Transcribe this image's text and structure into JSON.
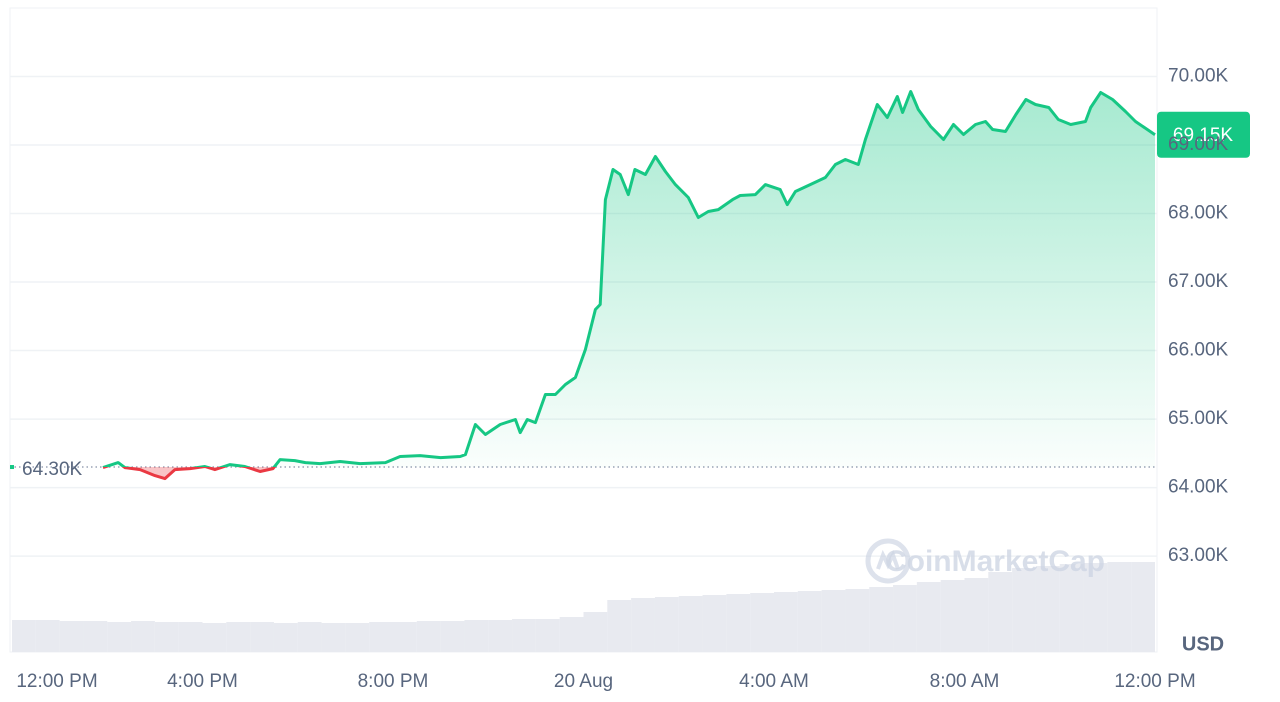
{
  "chart_data": {
    "type": "line",
    "x": [
      1.91,
      2.23,
      2.37,
      2.69,
      3.0,
      3.21,
      3.42,
      3.74,
      4.05,
      4.26,
      4.58,
      4.89,
      5.21,
      5.48,
      5.63,
      5.94,
      6.16,
      6.47,
      6.89,
      7.31,
      7.84,
      8.15,
      8.57,
      9.0,
      9.41,
      9.52,
      9.73,
      9.94,
      10.25,
      10.57,
      10.67,
      10.82,
      10.99,
      11.2,
      11.41,
      11.62,
      11.83,
      12.04,
      12.25,
      12.35,
      12.46,
      12.62,
      12.77,
      12.94,
      13.08,
      13.3,
      13.51,
      13.72,
      13.93,
      14.2,
      14.41,
      14.62,
      14.83,
      15.13,
      15.29,
      15.61,
      15.82,
      16.13,
      16.28,
      16.45,
      16.76,
      17.08,
      17.29,
      17.5,
      17.77,
      17.92,
      18.17,
      18.38,
      18.59,
      18.7,
      18.87,
      19.03,
      19.29,
      19.56,
      19.77,
      19.98,
      20.23,
      20.44,
      20.59,
      20.86,
      21.08,
      21.29,
      21.49,
      21.77,
      21.97,
      22.23,
      22.54,
      22.65,
      22.86,
      23.11,
      23.38,
      23.59,
      24.0
    ],
    "values": [
      64292,
      64365,
      64292,
      64263,
      64175,
      64131,
      64263,
      64277,
      64307,
      64263,
      64336,
      64307,
      64234,
      64277,
      64409,
      64394,
      64365,
      64350,
      64380,
      64350,
      64365,
      64453,
      64467,
      64438,
      64453,
      64482,
      64920,
      64774,
      64920,
      64993,
      64803,
      64993,
      64949,
      65358,
      65358,
      65504,
      65606,
      66015,
      66599,
      66672,
      68204,
      68642,
      68569,
      68277,
      68642,
      68569,
      68832,
      68613,
      68423,
      68234,
      67942,
      68029,
      68058,
      68204,
      68263,
      68277,
      68423,
      68350,
      68131,
      68321,
      68423,
      68526,
      68715,
      68788,
      68715,
      69080,
      69591,
      69401,
      69708,
      69474,
      69781,
      69518,
      69270,
      69080,
      69299,
      69153,
      69299,
      69343,
      69226,
      69197,
      69445,
      69664,
      69591,
      69547,
      69372,
      69299,
      69343,
      69547,
      69766,
      69664,
      69489,
      69343,
      69150
    ],
    "color_up": "#16c784",
    "color_down": "#ea3943",
    "baseline": {
      "value": 64300,
      "label": "64.30K"
    },
    "last_price": {
      "value": 69150,
      "label": "69.15K"
    },
    "xlim": [
      0,
      24
    ],
    "xticks": [
      {
        "value": 0,
        "label": "12:00 PM"
      },
      {
        "value": 4,
        "label": "4:00 PM"
      },
      {
        "value": 8,
        "label": "8:00 PM"
      },
      {
        "value": 12,
        "label": "20 Aug"
      },
      {
        "value": 16,
        "label": "4:00 AM"
      },
      {
        "value": 20,
        "label": "8:00 AM"
      },
      {
        "value": 24,
        "label": "12:00 PM"
      }
    ],
    "ylim": [
      61600,
      71000
    ],
    "yticks": [
      {
        "value": 63000,
        "label": "63.00K"
      },
      {
        "value": 64000,
        "label": "64.00K"
      },
      {
        "value": 65000,
        "label": "65.00K"
      },
      {
        "value": 66000,
        "label": "66.00K"
      },
      {
        "value": 67000,
        "label": "67.00K"
      },
      {
        "value": 68000,
        "label": "68.00K"
      },
      {
        "value": 69000,
        "label": "69.00K"
      },
      {
        "value": 70000,
        "label": "70.00K"
      }
    ],
    "y_axis_label": "USD",
    "grid": true,
    "watermark": "CoinMarketCap",
    "volume": {
      "x": [
        0,
        0.5,
        1,
        1.5,
        2,
        2.5,
        3,
        3.5,
        4,
        4.5,
        5,
        5.5,
        6,
        6.5,
        7,
        7.5,
        8,
        8.5,
        9,
        9.5,
        10,
        10.5,
        11,
        11.5,
        12,
        12.5,
        13,
        13.5,
        14,
        14.5,
        15,
        15.5,
        16,
        16.5,
        17,
        17.5,
        18,
        18.5,
        19,
        19.5,
        20,
        20.5,
        21,
        21.5,
        22,
        22.5,
        23,
        23.5
      ],
      "values": [
        32,
        32,
        31,
        31,
        30,
        31,
        30,
        30,
        29,
        30,
        30,
        29,
        30,
        29,
        29,
        30,
        30,
        31,
        31,
        32,
        32,
        33,
        33,
        35,
        40,
        52,
        54,
        55,
        56,
        57,
        58,
        59,
        60,
        61,
        62,
        63,
        65,
        67,
        70,
        72,
        74,
        80,
        84,
        86,
        88,
        89,
        90,
        90
      ],
      "lim": [
        0,
        100
      ],
      "color": "#e8eaf0"
    }
  }
}
